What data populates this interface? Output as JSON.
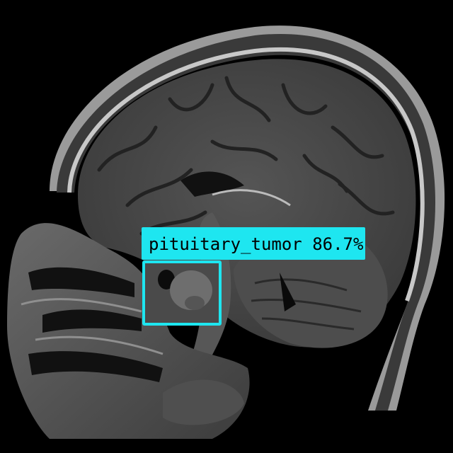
{
  "image": {
    "subject": "sagittal brain MRI scan",
    "background": "#000000"
  },
  "detection": {
    "class_label": "pituitary_tumor",
    "confidence": "86.7%",
    "color": "#1ee6f0"
  }
}
